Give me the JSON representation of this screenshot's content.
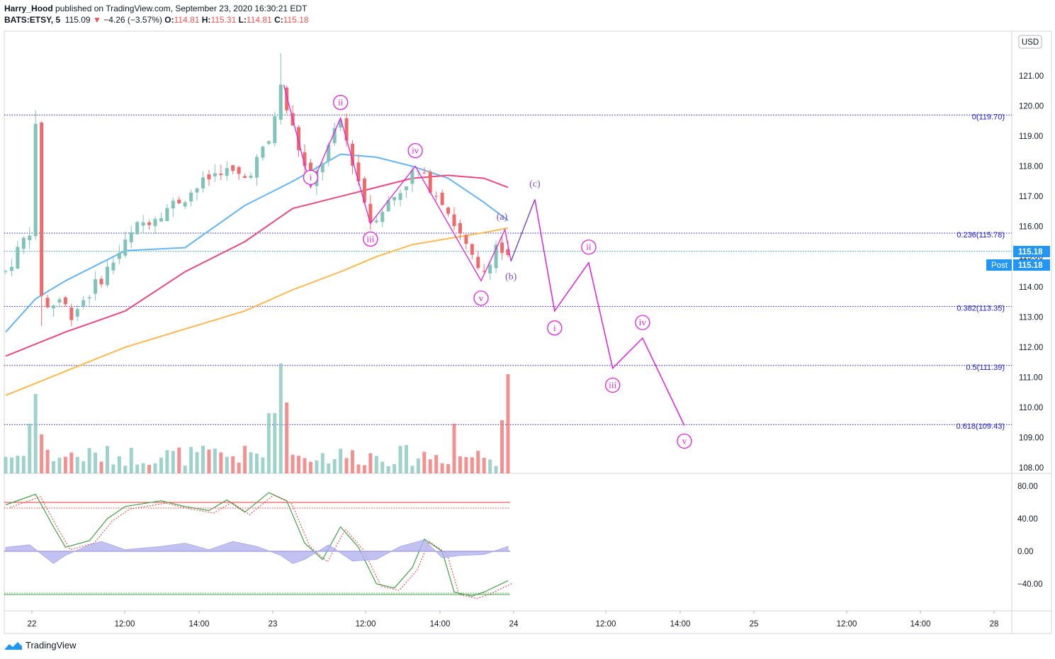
{
  "header": {
    "author": "Harry_Hood",
    "published": "published on TradingView.com, September 23, 2020 16:30:21 EDT",
    "symbol": "BATS:ETSY, 5",
    "price": "115.09",
    "change": "−4.26 (−3.57%)",
    "o_label": "O:",
    "o_val": "114.81",
    "h_label": "H:",
    "h_val": "115.31",
    "l_label": "L:",
    "l_val": "114.81",
    "c_label": "C:",
    "c_val": "115.18"
  },
  "currency_button": "USD",
  "price_badges": {
    "last": "115.18",
    "post_label": "Post",
    "post_value": "115.18"
  },
  "footer": {
    "brand": "TradingView"
  },
  "colors": {
    "up": "#7fc3b9",
    "down": "#ef6b6b",
    "ma_blue": "#64b5f6",
    "ma_pink": "#e84a7f",
    "ma_orange": "#ffb74d",
    "wave_magenta": "#e020e0",
    "wave_purple": "#7a4fbf",
    "fib_blue": "#1a1acf",
    "badge_blue": "#2196f3",
    "stoch_green": "#43a047",
    "stoch_red": "#e53935",
    "hist_fill": "#b4b4f0"
  },
  "chart_data": [
    {
      "type": "candlestick",
      "price_axis_ticks": [
        "121.00",
        "120.00",
        "119.00",
        "118.00",
        "117.00",
        "116.00",
        "115.00",
        "114.00",
        "113.00",
        "112.00",
        "111.00",
        "110.00",
        "109.00",
        "108.00"
      ],
      "time_axis_ticks": [
        "22",
        "12:00",
        "14:00",
        "23",
        "12:00",
        "14:00",
        "24",
        "12:00",
        "14:00",
        "25",
        "12:00",
        "14:00",
        "28"
      ],
      "ylim": [
        107.9,
        121.9
      ],
      "fib_levels": [
        {
          "label": "0(119.70)",
          "value": 119.7
        },
        {
          "label": "0.236(115.78)",
          "value": 115.78
        },
        {
          "label": "0.382(113.35)",
          "value": 113.35
        },
        {
          "label": "0.5(111.39)",
          "value": 111.39
        },
        {
          "label": "0.618(109.43)",
          "value": 109.43
        }
      ],
      "last_price_line": 115.18,
      "wave_labels_magenta": [
        {
          "text": "i",
          "t": 51.0,
          "v": 117.3
        },
        {
          "text": "ii",
          "t": 56.0,
          "v": 119.6
        },
        {
          "text": "iii",
          "t": 61.0,
          "v": 116.1
        },
        {
          "text": "iv",
          "t": 68.5,
          "v": 118.0
        },
        {
          "text": "v",
          "t": 79.5,
          "v": 114.0
        },
        {
          "text": "i",
          "t": 91.8,
          "v": 113.2
        },
        {
          "text": "ii",
          "t": 97.5,
          "v": 114.8
        },
        {
          "text": "iii",
          "t": 101.5,
          "v": 111.3
        },
        {
          "text": "iv",
          "t": 106.5,
          "v": 112.3
        },
        {
          "text": "v",
          "t": 113.5,
          "v": 109.4
        }
      ],
      "wave_labels_purple": [
        {
          "text": "(a)",
          "t": 83.0,
          "v": 115.9
        },
        {
          "text": "(b)",
          "t": 84.5,
          "v": 114.8
        },
        {
          "text": "(c)",
          "t": 88.5,
          "v": 116.9
        }
      ],
      "projected_path_purple": [
        [
          84.5,
          114.85
        ],
        [
          88.5,
          116.9
        ]
      ],
      "projected_path_magenta": [
        [
          88.5,
          116.9
        ],
        [
          91.8,
          113.2
        ],
        [
          97.5,
          114.8
        ],
        [
          101.5,
          111.3
        ],
        [
          106.5,
          112.3
        ],
        [
          113.5,
          109.4
        ]
      ],
      "pattern_path_magenta": [
        [
          46.5,
          120.7
        ],
        [
          51.0,
          117.3
        ],
        [
          56.0,
          119.6
        ],
        [
          61.0,
          116.1
        ],
        [
          68.5,
          118.0
        ],
        [
          79.5,
          114.2
        ],
        [
          83.5,
          115.9
        ],
        [
          84.5,
          114.85
        ]
      ],
      "series": [
        {
          "name": "MA blue",
          "values_at": [
            [
              0,
              112.5
            ],
            [
              5,
              113.6
            ],
            [
              10,
              114.2
            ],
            [
              20,
              115.2
            ],
            [
              30,
              115.3
            ],
            [
              40,
              116.7
            ],
            [
              48,
              117.5
            ],
            [
              56,
              118.4
            ],
            [
              62,
              118.3
            ],
            [
              68,
              118.0
            ],
            [
              74,
              117.6
            ],
            [
              80,
              116.8
            ],
            [
              84,
              116.2
            ]
          ]
        },
        {
          "name": "MA pink",
          "values_at": [
            [
              0,
              111.7
            ],
            [
              10,
              112.5
            ],
            [
              20,
              113.2
            ],
            [
              30,
              114.5
            ],
            [
              40,
              115.5
            ],
            [
              48,
              116.6
            ],
            [
              56,
              117.0
            ],
            [
              62,
              117.3
            ],
            [
              68,
              117.6
            ],
            [
              74,
              117.7
            ],
            [
              80,
              117.6
            ],
            [
              84,
              117.3
            ]
          ]
        },
        {
          "name": "MA orange",
          "values_at": [
            [
              0,
              110.4
            ],
            [
              10,
              111.2
            ],
            [
              20,
              112.0
            ],
            [
              30,
              112.6
            ],
            [
              40,
              113.2
            ],
            [
              48,
              113.9
            ],
            [
              56,
              114.5
            ],
            [
              62,
              115.0
            ],
            [
              68,
              115.4
            ],
            [
              74,
              115.6
            ],
            [
              80,
              115.8
            ],
            [
              84,
              115.95
            ]
          ]
        }
      ]
    },
    {
      "type": "oscillator",
      "axis_ticks": [
        "80.00",
        "40.00",
        "0.00",
        "−40.00"
      ],
      "ylim": [
        -60,
        90
      ],
      "upper_level": 60,
      "lower_level": -53,
      "zero_level": 0
    }
  ]
}
